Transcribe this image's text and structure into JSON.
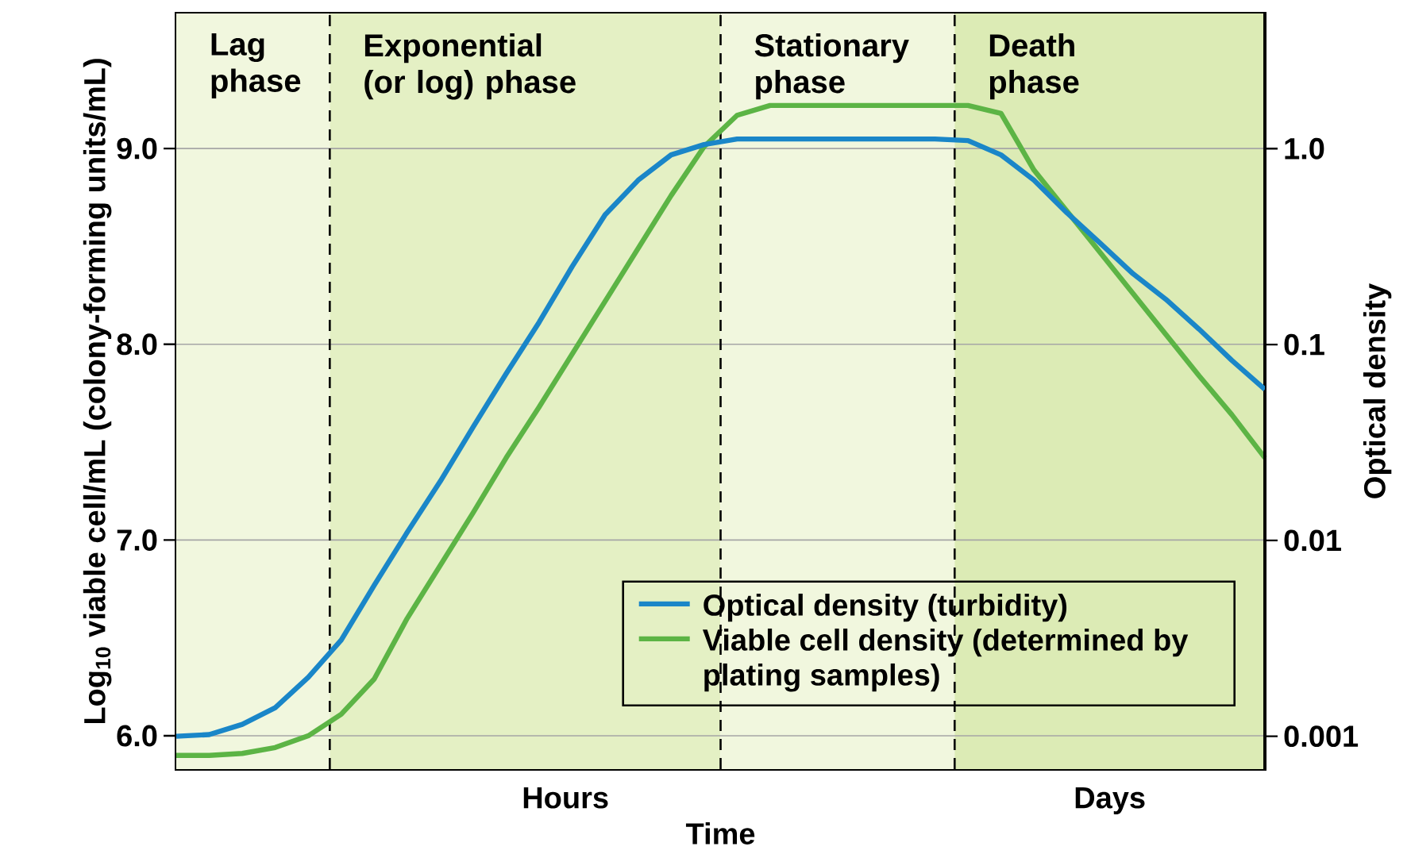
{
  "chart_data": {
    "type": "line",
    "xlabel": "Time",
    "ylabel": "Log$_{10}$ viable cell/mL (colony-forming units/mL)",
    "y2label": "Optical density",
    "categories": [
      null,
      null,
      null,
      null,
      null,
      null,
      null,
      null,
      null,
      null,
      null,
      null,
      null,
      null,
      null,
      null,
      null,
      null,
      null,
      null,
      null,
      null,
      null,
      null,
      null,
      null,
      null,
      null,
      null,
      null,
      null,
      null,
      null,
      null
    ],
    "series": [
      {
        "name": "Optical density (turbidity)",
        "color": "#1a86c8",
        "axis": "y2",
        "values": [
          0.001,
          0.00102,
          0.00115,
          0.0014,
          0.002,
          0.0031,
          0.0059,
          0.011,
          0.02,
          0.038,
          0.071,
          0.13,
          0.25,
          0.46,
          0.69,
          0.93,
          1.05,
          1.12,
          1.12,
          1.12,
          1.12,
          1.12,
          1.12,
          1.12,
          1.1,
          0.93,
          0.69,
          0.47,
          0.33,
          0.23,
          0.17,
          0.12,
          0.083,
          0.059
        ]
      },
      {
        "name": "Viable cell density (determined by plating samples)",
        "color": "#5cb445",
        "values": [
          5.9,
          5.9,
          5.91,
          5.94,
          6.0,
          6.11,
          6.29,
          6.6,
          6.87,
          7.14,
          7.42,
          7.68,
          7.95,
          8.22,
          8.49,
          8.76,
          9.01,
          9.17,
          9.22,
          9.22,
          9.22,
          9.22,
          9.22,
          9.22,
          9.22,
          9.18,
          8.89,
          8.68,
          8.47,
          8.26,
          8.05,
          7.84,
          7.64,
          7.42
        ]
      }
    ],
    "ylim": [
      5.83,
      9.69
    ],
    "yticks": [
      {
        "value": 6,
        "label": "6.0"
      },
      {
        "value": 7,
        "label": "7.0"
      },
      {
        "value": 8,
        "label": "8.0"
      },
      {
        "value": 9,
        "label": "9.0"
      }
    ],
    "y2lim": [
      0.00068,
      4.9
    ],
    "y2ticks": [
      0.001,
      0.01,
      0.1,
      {
        "value": 1,
        "label": "1.0"
      }
    ],
    "log": "y2",
    "annotations": [
      "Lag phase",
      "Exponential (or log) phase",
      "Stationary phase",
      "Death phase",
      "Hours",
      "Days"
    ],
    "grid": "y",
    "legend": "bottom right",
    "marker": "none"
  }
}
